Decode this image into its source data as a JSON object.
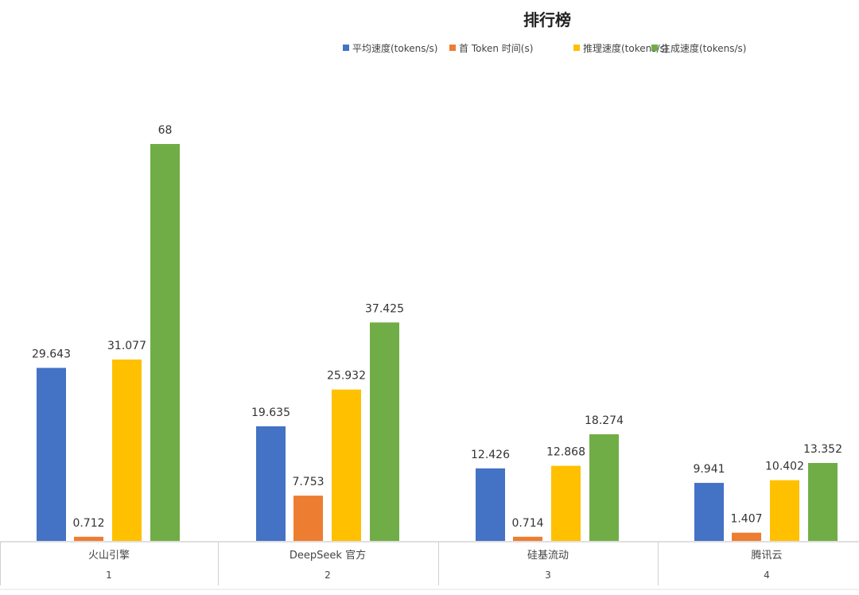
{
  "chart_data": {
    "type": "bar",
    "title": "排行榜",
    "xlabel": "",
    "ylabel": "",
    "ylim": [
      0,
      68
    ],
    "grid": false,
    "legend_position": "top",
    "categories": [
      "火山引擎",
      "DeepSeek 官方",
      "硅基流动",
      "腾讯云"
    ],
    "category_ranks": [
      "1",
      "2",
      "3",
      "4"
    ],
    "series": [
      {
        "name": "平均速度(tokens/s)",
        "color": "#4472C4",
        "values": [
          29.643,
          19.635,
          12.426,
          9.941
        ]
      },
      {
        "name": "首 Token 时间(s)",
        "color": "#ED7D31",
        "values": [
          0.712,
          7.753,
          0.714,
          1.407
        ]
      },
      {
        "name": "推理速度(tokens/s)",
        "color": "#FFC000",
        "values": [
          31.077,
          25.932,
          12.868,
          10.402
        ]
      },
      {
        "name": "生成速度(tokens/s)",
        "color": "#70AD47",
        "values": [
          68,
          37.425,
          18.274,
          13.352
        ]
      }
    ],
    "data_labels": [
      [
        "29.643",
        "0.712",
        "31.077",
        "68"
      ],
      [
        "19.635",
        "7.753",
        "25.932",
        "37.425"
      ],
      [
        "12.426",
        "0.714",
        "12.868",
        "18.274"
      ],
      [
        "9.941",
        "1.407",
        "10.402",
        "13.352"
      ]
    ]
  }
}
